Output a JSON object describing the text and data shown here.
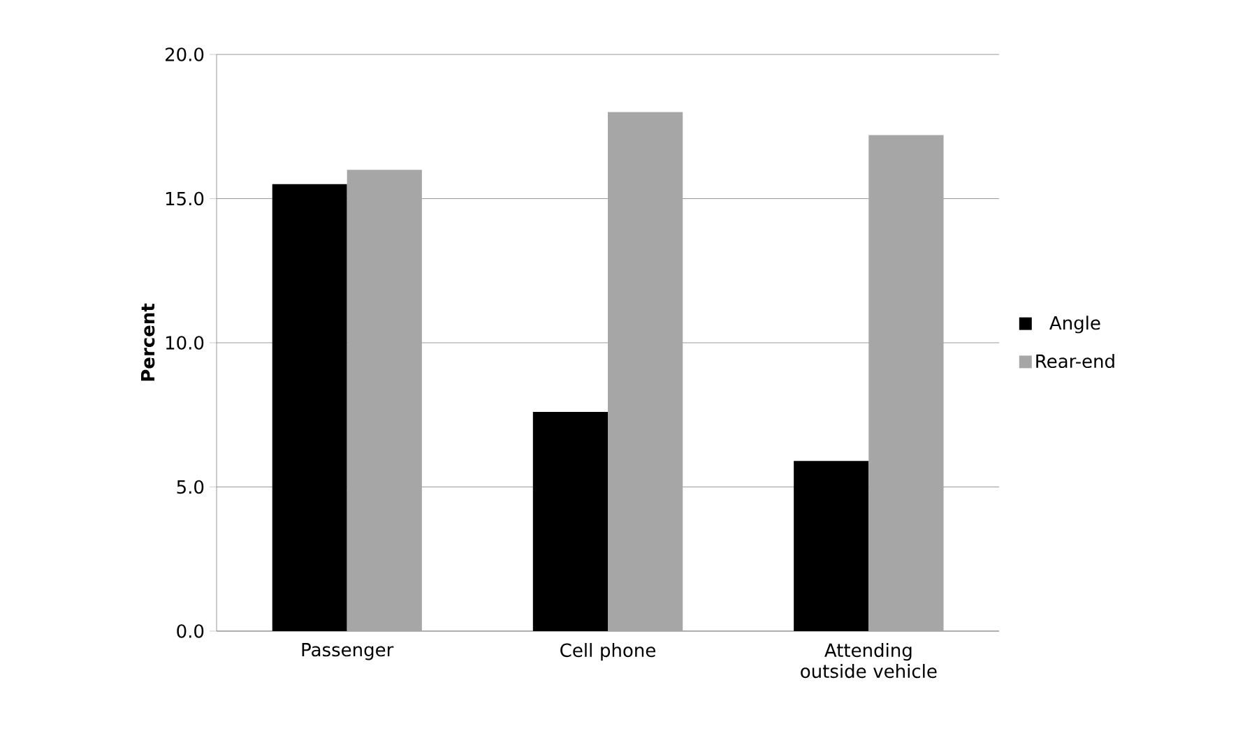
{
  "chart_data": {
    "type": "bar",
    "ylabel": "Percent",
    "categories": [
      "Passenger",
      "Cell phone",
      "Attending outside vehicle"
    ],
    "series": [
      {
        "name": "Angle",
        "color": "#000000",
        "values": [
          15.5,
          7.6,
          5.9
        ]
      },
      {
        "name": "Rear-end",
        "color": "#a6a6a6",
        "values": [
          16.0,
          18.0,
          17.2
        ]
      }
    ],
    "ylim": [
      0,
      20
    ],
    "yticks": [
      {
        "value": 0,
        "label": "0.0"
      },
      {
        "value": 5,
        "label": "5.0"
      },
      {
        "value": 10,
        "label": "10.0"
      },
      {
        "value": 15,
        "label": "15.0"
      },
      {
        "value": 20,
        "label": "20.0"
      }
    ],
    "grid": "y",
    "legend": "right"
  }
}
